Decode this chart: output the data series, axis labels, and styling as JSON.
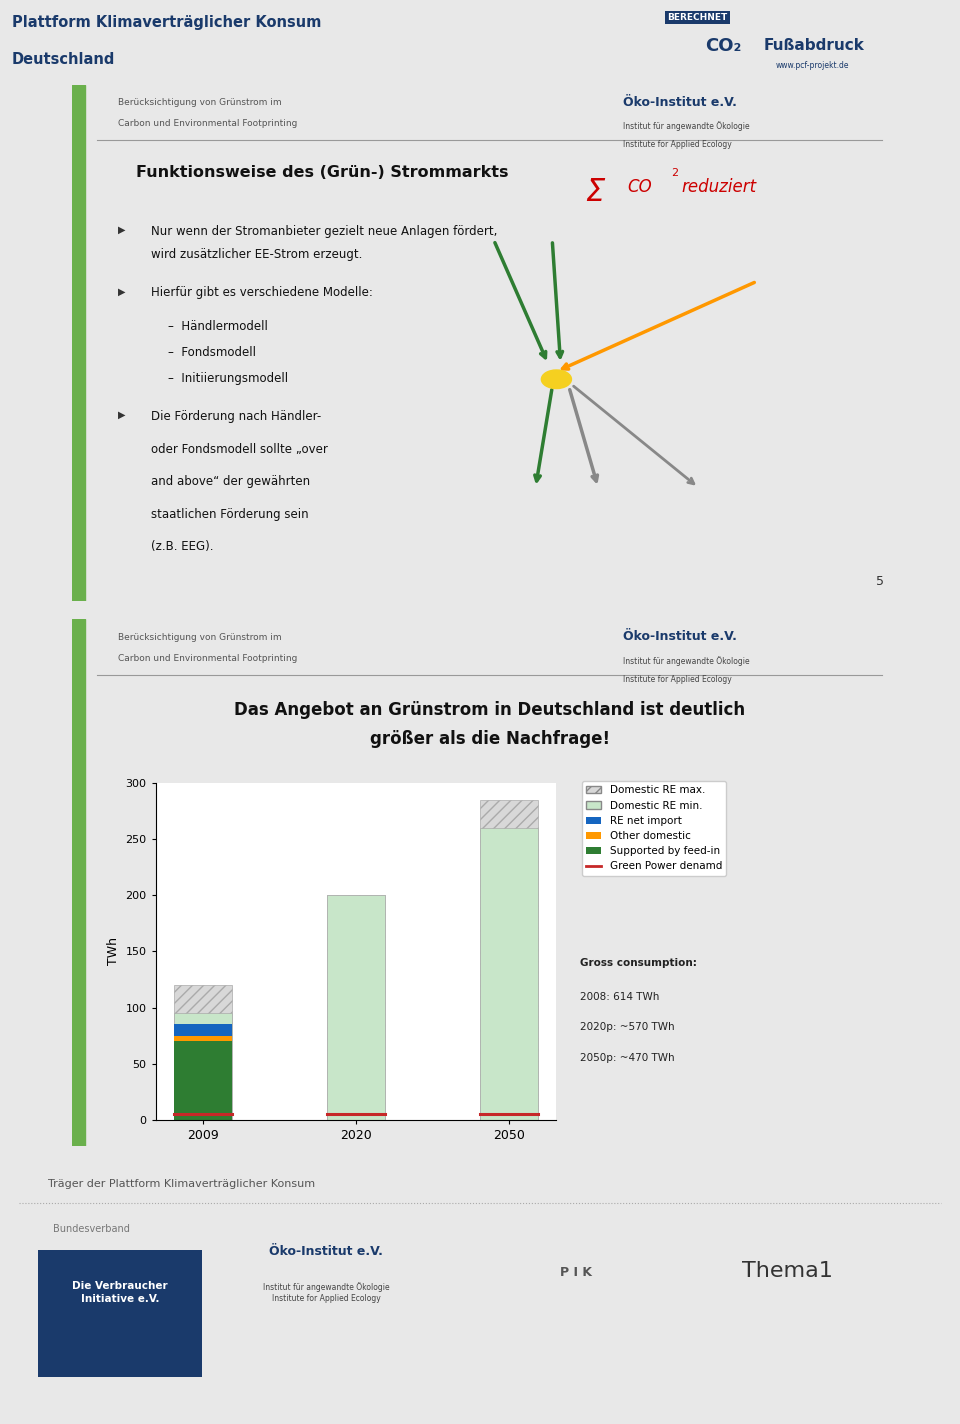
{
  "bg_color": "#ffffff",
  "page_bg": "#f0f0f0",
  "header_text_line1": "Plattform Klimaverträglicher Konsum",
  "header_text_line2": "Deutschland",
  "header_color": "#1a3a6b",
  "slide1": {
    "slide_bg": "#ffffff",
    "accent_bar_color": "#6ab04c",
    "header_sub1": "Berücksichtigung von Grünstrom im",
    "header_sub2": "Carbon und Environmental Footprinting",
    "title": "Funktionsweise des (Grün-) Strommarkts",
    "bullet1_line1": "Nur wenn der Stromanbieter gezielt neue Anlagen fördert,",
    "bullet1_line2": "wird zusätzlicher EE-Strom erzeugt.",
    "bullet2_intro": "Hierfür gibt es verschiedene Modelle:",
    "sub_bullets": [
      "Händlermodell",
      "Fondsmodell",
      "Initiierungsmodell"
    ],
    "bullet3_line1": "Die Förderung nach Händler-",
    "bullet3_line2": "oder Fondsmodell sollte „over",
    "bullet3_line3": "and above“ der gewährten",
    "bullet3_line4": "staatlichen Förderung sein",
    "bullet3_line5": "(z.B. EEG).",
    "slide_number": "5",
    "oeko_name": "Öko-Institut e.V.",
    "oeko_sub1": "Institut für angewandte Ökologie",
    "oeko_sub2": "Institute for Applied Ecology"
  },
  "slide2": {
    "slide_bg": "#ffffff",
    "accent_bar_color": "#6ab04c",
    "header_sub1": "Berücksichtigung von Grünstrom im",
    "header_sub2": "Carbon und Environmental Footprinting",
    "title_line1": "Das Angebot an Grünstrom in Deutschland ist deutlich",
    "title_line2": "größer als die Nachfrage!",
    "oeko_name": "Öko-Institut e.V.",
    "oeko_sub1": "Institut für angewandte Ökologie",
    "oeko_sub2": "Institute for Applied Ecology",
    "ylabel": "TWh",
    "ylim": [
      0,
      300
    ],
    "yticks": [
      0,
      50,
      100,
      150,
      200,
      250,
      300
    ],
    "categories": [
      "2009",
      "2020",
      "2050"
    ],
    "domestic_re_max": [
      120,
      200,
      285
    ],
    "domestic_re_min": [
      95,
      200,
      260
    ],
    "re_net_import_2009": 10,
    "other_domestic_2009": 5,
    "supported_feedin_2009": 70,
    "green_power_demand_val": 5,
    "color_re_max": "#d8d8d8",
    "color_re_min": "#c8e6c9",
    "color_re_import": "#1565c0",
    "color_other": "#ff9800",
    "color_feedin": "#2e7d32",
    "color_demand": "#c62828",
    "legend_labels": [
      "Domestic RE max.",
      "Domestic RE min.",
      "RE net import",
      "Other domestic",
      "Supported by feed-in",
      "Green Power denamd"
    ],
    "annotation_bold": "Gross consumption:",
    "annotation_lines": [
      "2008: 614 TWh",
      "2020p: ~570 TWh",
      "2050p: ~470 TWh"
    ]
  },
  "footer": {
    "separator_text": "Träger der Plattform Klimaverträglicher Konsum",
    "bundesverband": "Bundesverband",
    "logo1_line1": "Die Verbraucher",
    "logo1_line2": "Initiative e.V.",
    "logo1_bg": "#1a3a6b",
    "logo2_name": "Öko-Institut e.V.",
    "logo2_sub1": "Institut für angewandte Ökologie",
    "logo2_sub2": "Institute for Applied Ecology",
    "logo3": "P I K",
    "logo4": "Thema1"
  }
}
